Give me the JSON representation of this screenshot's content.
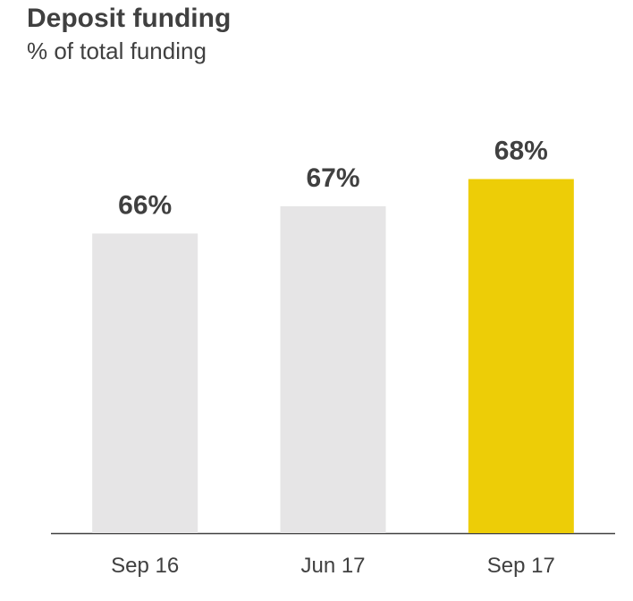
{
  "chart_data": {
    "type": "bar",
    "title": "Deposit funding",
    "subtitle": "% of total funding",
    "categories": [
      "Sep 16",
      "Jun 17",
      "Sep 17"
    ],
    "values": [
      66,
      67,
      68
    ],
    "value_labels": [
      "66%",
      "67%",
      "68%"
    ],
    "colors": [
      "#e6e5e6",
      "#e6e5e6",
      "#edcd07"
    ],
    "ylim": [
      55,
      70
    ]
  }
}
